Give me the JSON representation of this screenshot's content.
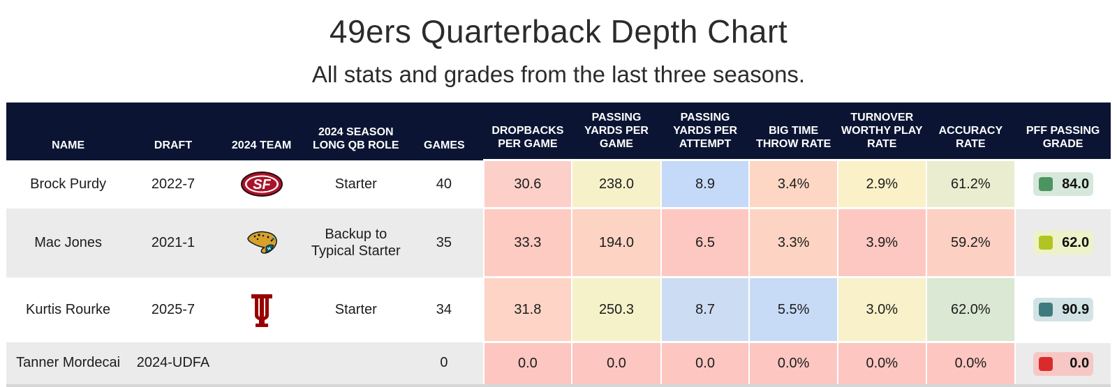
{
  "title": "49ers Quarterback Depth Chart",
  "subtitle": "All stats and grades from the last three seasons.",
  "headers": [
    "NAME",
    "DRAFT",
    "2024 TEAM",
    "2024 SEASON LONG QB ROLE",
    "GAMES",
    "DROPBACKS PER GAME",
    "PASSING YARDS PER GAME",
    "PASSING YARDS PER ATTEMPT",
    "BIG TIME THROW RATE",
    "TURNOVER WORTHY PLAY RATE",
    "ACCURACY RATE",
    "PFF PASSING GRADE"
  ],
  "rows": [
    {
      "name": "Brock Purdy",
      "draft": "2022-7",
      "team_icon": "49ers-logo-icon",
      "role": "Starter",
      "games": "40",
      "stats": [
        "30.6",
        "238.0",
        "8.9",
        "3.4%",
        "2.9%",
        "61.2%"
      ],
      "stat_colors": [
        "#fcd0c9",
        "#f7f1c9",
        "#c4daf8",
        "#fdd7c4",
        "#fbf1c8",
        "#eaedcf"
      ],
      "grade": "84.0",
      "grade_color": "#4c9460",
      "grade_bg": "#d6e8db"
    },
    {
      "name": "Mac Jones",
      "draft": "2021-1",
      "team_icon": "jaguars-logo-icon",
      "role": "Backup to Typical Starter",
      "games": "35",
      "stats": [
        "33.3",
        "194.0",
        "6.5",
        "3.3%",
        "3.9%",
        "59.2%"
      ],
      "stat_colors": [
        "#fdcbc1",
        "#fdd3c4",
        "#fcc8c1",
        "#fdd4c3",
        "#fdc8c2",
        "#fdd0c4"
      ],
      "grade": "62.0",
      "grade_color": "#b2c423",
      "grade_bg": "#eef2c8"
    },
    {
      "name": "Kurtis Rourke",
      "draft": "2025-7",
      "team_icon": "indiana-logo-icon",
      "role": "Starter",
      "games": "34",
      "stats": [
        "31.8",
        "250.3",
        "8.7",
        "5.5%",
        "3.0%",
        "62.0%"
      ],
      "stat_colors": [
        "#fdd4c6",
        "#f5f2c9",
        "#ccdcf2",
        "#c7daf6",
        "#f8f1c9",
        "#dbe8d3"
      ],
      "grade": "90.9",
      "grade_color": "#3f7b7e",
      "grade_bg": "#d2e3e5"
    },
    {
      "name": "Tanner Mordecai",
      "draft": "2024-UDFA",
      "team_icon": "",
      "role": "",
      "games": "0",
      "stats": [
        "0.0",
        "0.0",
        "0.0",
        "0.0%",
        "0.0%",
        "0.0%"
      ],
      "stat_colors": [
        "#fdc6c1",
        "#fdc6c1",
        "#fdc6c1",
        "#fdc6c1",
        "#fdc6c1",
        "#fdc6c1"
      ],
      "grade": "0.0",
      "grade_color": "#d92b2b",
      "grade_bg": "#f7c7c5"
    }
  ]
}
